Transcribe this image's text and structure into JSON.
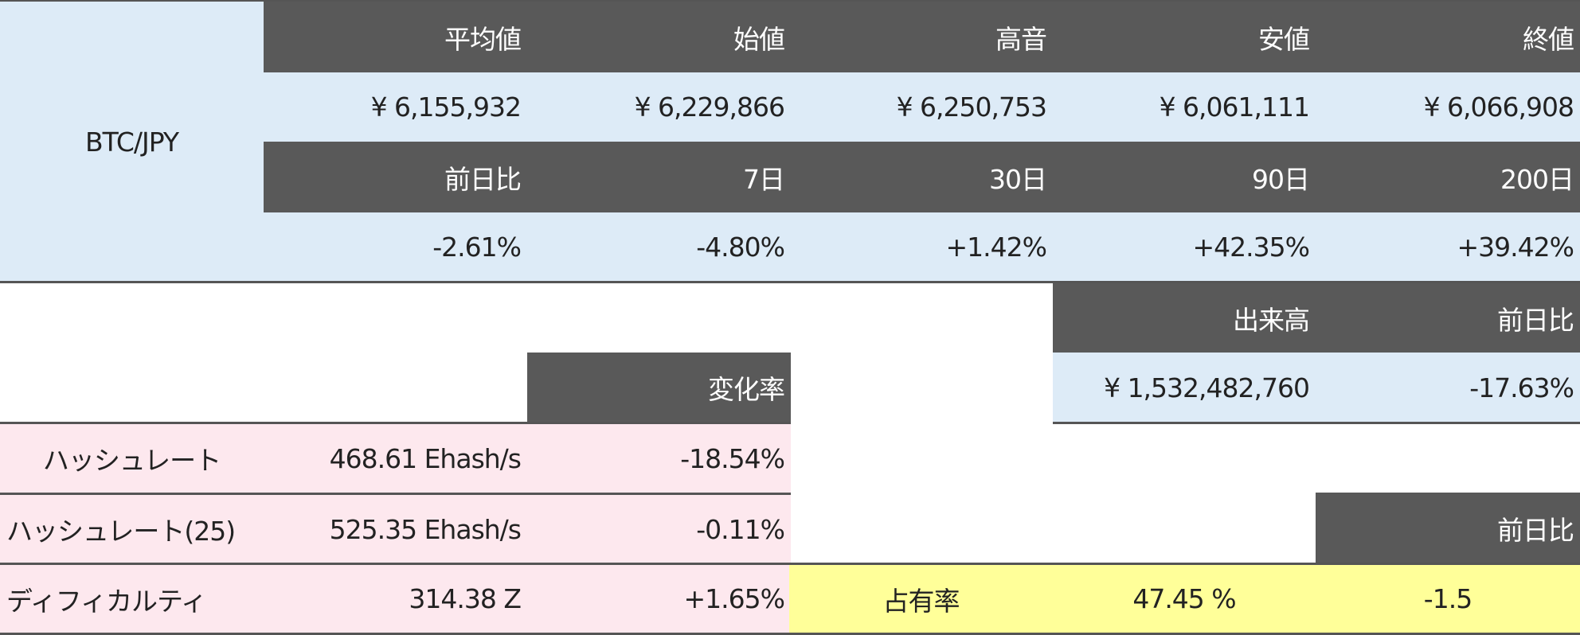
{
  "pair": "BTC/JPY",
  "price_headers": [
    "平均値",
    "始値",
    "高音",
    "安値",
    "終値"
  ],
  "price_values": [
    "¥ 6,155,932",
    "¥ 6,229,866",
    "¥ 6,250,753",
    "¥ 6,061,111",
    "¥ 6,066,908"
  ],
  "change_headers": [
    "前日比",
    "7日",
    "30日",
    "90日",
    "200日"
  ],
  "change_values": [
    "-2.61%",
    "-4.80%",
    "+1.42%",
    "+42.35%",
    "+39.42%"
  ],
  "volume": {
    "header": "出来高",
    "change_header": "前日比",
    "value": "¥ 1,532,482,760",
    "change": "-17.63%"
  },
  "mining": {
    "change_header": "変化率",
    "rows": [
      {
        "label": "ハッシュレート",
        "value": "468.61 Ehash/s",
        "change": "-18.54%"
      },
      {
        "label": "ハッシュレート(25)",
        "value": "525.35 Ehash/s",
        "change": "-0.11%"
      },
      {
        "label": "ディフィカルティ",
        "value": "314.38 Z",
        "change": "+1.65%"
      }
    ]
  },
  "dominance": {
    "change_header": "前日比",
    "label": "占有率",
    "value": "47.45 %",
    "change": "-1.5"
  },
  "colors": {
    "header": "#595959",
    "price_bg": "#DDEBF7",
    "mining_bg": "#FDE8EE",
    "dominance_bg": "#FFFF99"
  }
}
